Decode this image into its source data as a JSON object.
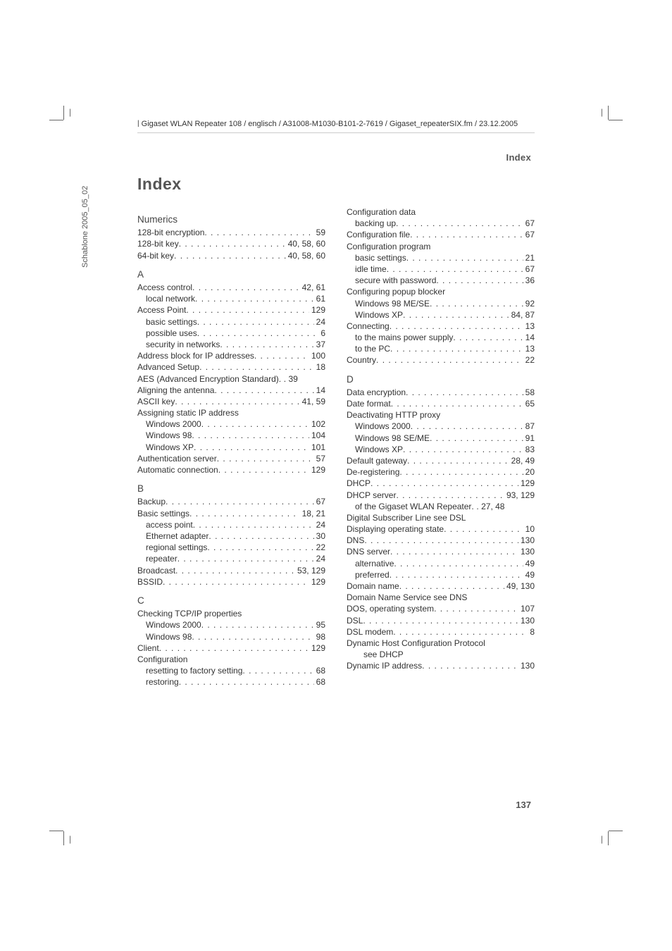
{
  "spine": "Schablone 2005_05_02",
  "header_path": "Gigaset WLAN Repeater 108 / englisch / A31008-M1030-B101-2-7619 / Gigaset_repeaterSIX.fm / 23.12.2005",
  "section_label": "Index",
  "title": "Index",
  "page_number": "137",
  "left": [
    {
      "type": "section",
      "text": "Numerics"
    },
    {
      "label": "128-bit encryption",
      "pages": "59"
    },
    {
      "label": "128-bit key",
      "pages": "40, 58, 60"
    },
    {
      "label": "64-bit key",
      "pages": "40, 58, 60"
    },
    {
      "type": "section",
      "text": "A"
    },
    {
      "label": "Access control",
      "pages": "42, 61"
    },
    {
      "label": "local network",
      "pages": "61",
      "indent": 1
    },
    {
      "label": "Access Point",
      "pages": "129"
    },
    {
      "label": "basic settings",
      "pages": "24",
      "indent": 1
    },
    {
      "label": "possible uses",
      "pages": "6",
      "indent": 1
    },
    {
      "label": "security in networks",
      "pages": "37",
      "indent": 1
    },
    {
      "label": "Address block for IP addresses",
      "pages": "100"
    },
    {
      "label": "Advanced Setup",
      "pages": "18"
    },
    {
      "label": "AES (Advanced Encryption Standard)",
      "pages": "39",
      "tight": true
    },
    {
      "label": "Aligning the antenna",
      "pages": "14"
    },
    {
      "label": "ASCII key",
      "pages": "41, 59"
    },
    {
      "label": "Assigning static IP address",
      "noleader": true
    },
    {
      "label": "Windows 2000",
      "pages": "102",
      "indent": 1
    },
    {
      "label": "Windows 98",
      "pages": "104",
      "indent": 1
    },
    {
      "label": "Windows XP",
      "pages": "101",
      "indent": 1
    },
    {
      "label": "Authentication server",
      "pages": "57"
    },
    {
      "label": "Automatic connection",
      "pages": "129"
    },
    {
      "type": "section",
      "text": "B"
    },
    {
      "label": "Backup",
      "pages": "67"
    },
    {
      "label": "Basic settings",
      "pages": "18, 21"
    },
    {
      "label": "access point",
      "pages": "24",
      "indent": 1
    },
    {
      "label": "Ethernet adapter",
      "pages": "30",
      "indent": 1
    },
    {
      "label": "regional settings",
      "pages": "22",
      "indent": 1
    },
    {
      "label": "repeater",
      "pages": "24",
      "indent": 1
    },
    {
      "label": "Broadcast",
      "pages": "53, 129"
    },
    {
      "label": "BSSID",
      "pages": "129"
    },
    {
      "type": "section",
      "text": "C"
    },
    {
      "label": "Checking TCP/IP properties",
      "noleader": true
    },
    {
      "label": "Windows 2000",
      "pages": "95",
      "indent": 1
    },
    {
      "label": "Windows 98",
      "pages": "98",
      "indent": 1
    },
    {
      "label": "Client",
      "pages": "129"
    },
    {
      "label": "Configuration",
      "noleader": true
    },
    {
      "label": "resetting to factory setting",
      "pages": "68",
      "indent": 1
    },
    {
      "label": "restoring",
      "pages": "68",
      "indent": 1
    }
  ],
  "right": [
    {
      "label": "Configuration data",
      "noleader": true
    },
    {
      "label": "backing up",
      "pages": "67",
      "indent": 1
    },
    {
      "label": "Configuration file",
      "pages": "67"
    },
    {
      "label": "Configuration program",
      "noleader": true
    },
    {
      "label": "basic settings",
      "pages": "21",
      "indent": 1
    },
    {
      "label": "idle time",
      "pages": "67",
      "indent": 1
    },
    {
      "label": "secure with password",
      "pages": "36",
      "indent": 1
    },
    {
      "label": "Configuring popup blocker",
      "noleader": true
    },
    {
      "label": "Windows 98 ME/SE",
      "pages": "92",
      "indent": 1
    },
    {
      "label": "Windows XP",
      "pages": "84, 87",
      "indent": 1
    },
    {
      "label": "Connecting",
      "pages": "13"
    },
    {
      "label": "to the mains power supply",
      "pages": "14",
      "indent": 1
    },
    {
      "label": "to the PC",
      "pages": "13",
      "indent": 1
    },
    {
      "label": "Country",
      "pages": "22"
    },
    {
      "type": "section",
      "text": "D"
    },
    {
      "label": "Data encryption",
      "pages": "58"
    },
    {
      "label": "Date format",
      "pages": "65"
    },
    {
      "label": "Deactivating HTTP proxy",
      "noleader": true
    },
    {
      "label": "Windows 2000",
      "pages": "87",
      "indent": 1
    },
    {
      "label": "Windows 98 SE/ME",
      "pages": "91",
      "indent": 1
    },
    {
      "label": "Windows XP",
      "pages": "83",
      "indent": 1
    },
    {
      "label": "Default gateway",
      "pages": "28, 49"
    },
    {
      "label": "De-registering",
      "pages": "20"
    },
    {
      "label": "DHCP",
      "pages": "129"
    },
    {
      "label": "DHCP server",
      "pages": "93, 129"
    },
    {
      "label": "of the Gigaset WLAN Repeater",
      "pages": "27, 48",
      "indent": 1,
      "tight": true
    },
    {
      "label": "Digital Subscriber Line see DSL",
      "noleader": true
    },
    {
      "label": "Displaying operating state",
      "pages": "10"
    },
    {
      "label": "DNS",
      "pages": "130"
    },
    {
      "label": "DNS server",
      "pages": "130"
    },
    {
      "label": "alternative",
      "pages": "49",
      "indent": 1
    },
    {
      "label": "preferred",
      "pages": "49",
      "indent": 1
    },
    {
      "label": "Domain name",
      "pages": "49, 130"
    },
    {
      "label": "Domain Name Service see DNS",
      "noleader": true
    },
    {
      "label": "DOS, operating system",
      "pages": "107"
    },
    {
      "label": "DSL",
      "pages": "130"
    },
    {
      "label": "DSL modem",
      "pages": "8"
    },
    {
      "label": "Dynamic Host Configuration Protocol",
      "noleader": true
    },
    {
      "label": "see DHCP",
      "noleader": true,
      "indent": 2
    },
    {
      "label": "Dynamic IP address",
      "pages": "130"
    }
  ]
}
